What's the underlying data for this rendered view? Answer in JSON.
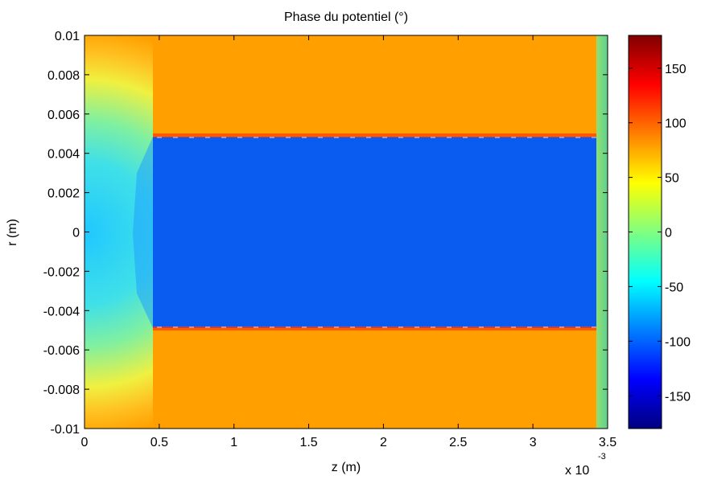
{
  "chart_data": {
    "type": "heatmap",
    "title": "Phase du potentiel (°)",
    "xlabel": "z (m)",
    "ylabel": "r (m)",
    "x_exponent_label": "x 10",
    "x_exponent_power": "-3",
    "xlim": [
      0,
      3.5
    ],
    "ylim": [
      -0.01,
      0.01
    ],
    "x_ticks": [
      "0",
      "0.5",
      "1",
      "1.5",
      "2",
      "2.5",
      "3",
      "3.5"
    ],
    "y_ticks": [
      "0.01",
      "0.008",
      "0.006",
      "0.004",
      "0.002",
      "0",
      "-0.002",
      "-0.004",
      "-0.006",
      "-0.008",
      "-0.01"
    ],
    "colormap": "jet",
    "clim": [
      -180,
      180
    ],
    "colorbar_ticks": [
      "150",
      "100",
      "50",
      "0",
      "-50",
      "-100",
      "-150"
    ],
    "regions": [
      {
        "name": "outer",
        "z_range": [
          0.5,
          3.42
        ],
        "r_abs_range": [
          0.0049,
          0.01
        ],
        "phase": 80
      },
      {
        "name": "core",
        "z_range": [
          0.5,
          3.42
        ],
        "r_abs_range": [
          0,
          0.0049
        ],
        "phase": -105
      },
      {
        "name": "inlet",
        "z_range": [
          0,
          0.5
        ],
        "phase_center": -65,
        "phase_corner": 40
      },
      {
        "name": "outlet-edge",
        "z_range": [
          3.42,
          3.5
        ],
        "phase": 15
      }
    ],
    "interface_r": 0.0049,
    "interface_peak_phase": 140
  }
}
